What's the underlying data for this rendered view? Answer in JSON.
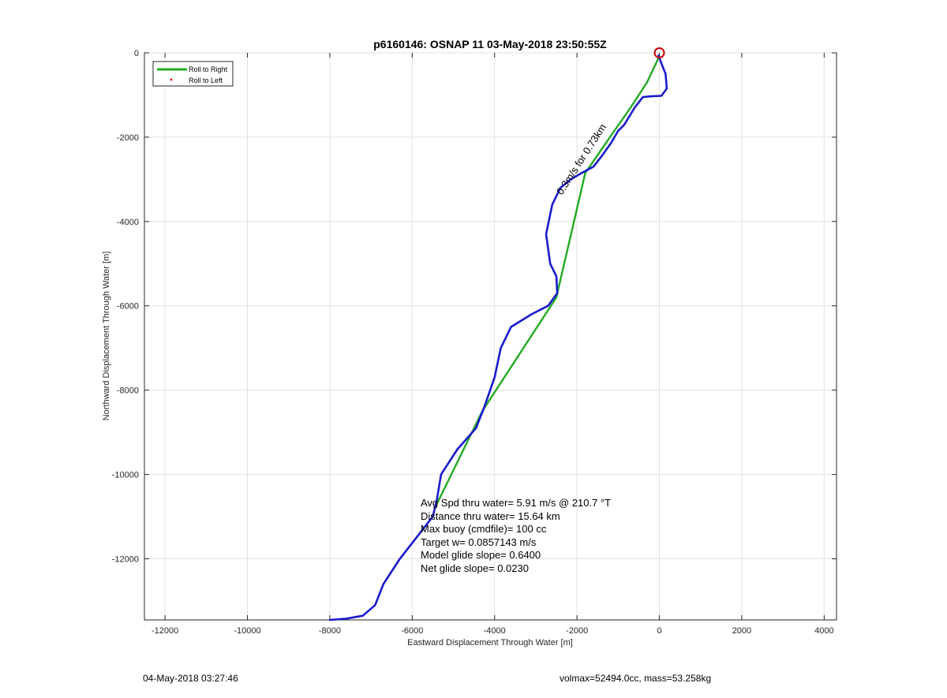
{
  "chart_data": {
    "type": "line",
    "title": "p6160146: OSNAP 11 03-May-2018 23:50:55Z",
    "xlabel": "Eastward Displacement Through Water [m]",
    "ylabel": "Northward Displacement Through Water [m]",
    "xlim": [
      -12500,
      4300
    ],
    "ylim": [
      -13450,
      0
    ],
    "xticks": [
      -12000,
      -10000,
      -8000,
      -6000,
      -4000,
      -2000,
      0,
      2000,
      4000
    ],
    "xtick_labels": [
      "-12000",
      "-10000",
      "-8000",
      "-6000",
      "-4000",
      "-2000",
      "0",
      "2000",
      "4000"
    ],
    "yticks": [
      0,
      -2000,
      -4000,
      -6000,
      -8000,
      -10000,
      -12000
    ],
    "ytick_labels": [
      "0",
      "-2000",
      "-4000",
      "-6000",
      "-8000",
      "-10000",
      "-12000"
    ],
    "grid": true,
    "legend": {
      "position": "top-left",
      "entries": [
        "Roll to Right",
        "Roll to Left"
      ]
    },
    "colors": {
      "glide_track": "#1a1acc",
      "roll_right": "#22aa22",
      "roll_left": "#dd0000",
      "start_marker": "#cc0000"
    },
    "series": [
      {
        "name": "Roll to Right",
        "style": "green-line",
        "points": [
          [
            0,
            -80
          ],
          [
            -300,
            -700
          ],
          [
            -700,
            -1300
          ],
          [
            -1200,
            -2000
          ],
          [
            -1800,
            -2850
          ],
          [
            -2500,
            -5800
          ],
          [
            -4300,
            -8500
          ],
          [
            -5400,
            -10700
          ]
        ]
      },
      {
        "name": "",
        "style": "blue-track",
        "points": [
          [
            -20,
            -60
          ],
          [
            50,
            -250
          ],
          [
            150,
            -500
          ],
          [
            180,
            -850
          ],
          [
            50,
            -1020
          ],
          [
            -200,
            -1030
          ],
          [
            -400,
            -1050
          ],
          [
            -600,
            -1300
          ],
          [
            -850,
            -1700
          ],
          [
            -1000,
            -1850
          ],
          [
            -1180,
            -2150
          ],
          [
            -1400,
            -2450
          ],
          [
            -1600,
            -2700
          ],
          [
            -1850,
            -2830
          ],
          [
            -2150,
            -3000
          ],
          [
            -2400,
            -3200
          ],
          [
            -2600,
            -3600
          ],
          [
            -2750,
            -4300
          ],
          [
            -2650,
            -5000
          ],
          [
            -2500,
            -5300
          ],
          [
            -2480,
            -5700
          ],
          [
            -2700,
            -6000
          ],
          [
            -3100,
            -6200
          ],
          [
            -3600,
            -6500
          ],
          [
            -3850,
            -7000
          ],
          [
            -4000,
            -7700
          ],
          [
            -4250,
            -8400
          ],
          [
            -4450,
            -8900
          ],
          [
            -4900,
            -9400
          ],
          [
            -5300,
            -10000
          ],
          [
            -5400,
            -10600
          ],
          [
            -5500,
            -11000
          ],
          [
            -5900,
            -11500
          ],
          [
            -6300,
            -12000
          ],
          [
            -6700,
            -12600
          ],
          [
            -6900,
            -13100
          ],
          [
            -7200,
            -13350
          ],
          [
            -7600,
            -13420
          ],
          [
            -8000,
            -13450
          ]
        ]
      }
    ],
    "start_marker": [
      0,
      0
    ],
    "current_annotation": "0.3m/s for 0.73km",
    "stats_lines": [
      "Avg Spd thru water=  5.91 m/s @ 210.7 °T",
      "Distance thru water= 15.64 km",
      "Max buoy (cmdfile)= 100 cc",
      "Target w= 0.0857143 m/s",
      "Model glide slope= 0.6400",
      "Net glide slope= 0.0230"
    ]
  },
  "footer": {
    "timestamp": "04-May-2018 03:27:46",
    "vehicle_info": "volmax=52494.0cc, mass=53.258kg"
  }
}
